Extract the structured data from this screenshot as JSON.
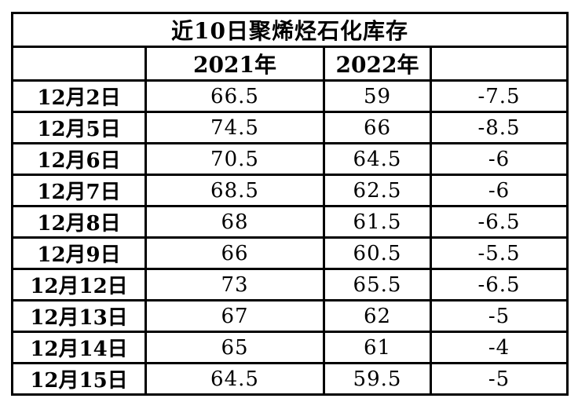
{
  "title": "近10日聚烯烃石化库存",
  "colors": {
    "title_bg": "#c00404",
    "title_text": "#ffffff",
    "border": "#000000",
    "cell_bg": "#ffffff",
    "cell_text": "#000000"
  },
  "table": {
    "headers": [
      "",
      "2021年",
      "2022年",
      ""
    ],
    "rows": [
      [
        "12月2日",
        "66.5",
        "59",
        "-7.5"
      ],
      [
        "12月5日",
        "74.5",
        "66",
        "-8.5"
      ],
      [
        "12月6日",
        "70.5",
        "64.5",
        "-6"
      ],
      [
        "12月7日",
        "68.5",
        "62.5",
        "-6"
      ],
      [
        "12月8日",
        "68",
        "61.5",
        "-6.5"
      ],
      [
        "12月9日",
        "66",
        "60.5",
        "-5.5"
      ],
      [
        "12月12日",
        "73",
        "65.5",
        "-6.5"
      ],
      [
        "12月13日",
        "67",
        "62",
        "-5"
      ],
      [
        "12月14日",
        "65",
        "61",
        "-4"
      ],
      [
        "12月15日",
        "64.5",
        "59.5",
        "-5"
      ]
    ]
  },
  "chart_data": {
    "type": "table",
    "title": "近10日聚烯烃石化库存",
    "columns": [
      "",
      "2021年",
      "2022年",
      ""
    ],
    "dates": [
      "12月2日",
      "12月5日",
      "12月6日",
      "12月7日",
      "12月8日",
      "12月9日",
      "12月12日",
      "12月13日",
      "12月14日",
      "12月15日"
    ],
    "series": [
      {
        "name": "2021年",
        "values": [
          66.5,
          74.5,
          70.5,
          68.5,
          68,
          66,
          73,
          67,
          65,
          64.5
        ]
      },
      {
        "name": "2022年",
        "values": [
          59,
          66,
          64.5,
          62.5,
          61.5,
          60.5,
          65.5,
          62,
          61,
          59.5
        ]
      },
      {
        "name": "",
        "values": [
          -7.5,
          -8.5,
          -6,
          -6,
          -6.5,
          -5.5,
          -6.5,
          -5,
          -4,
          -5
        ]
      }
    ]
  }
}
